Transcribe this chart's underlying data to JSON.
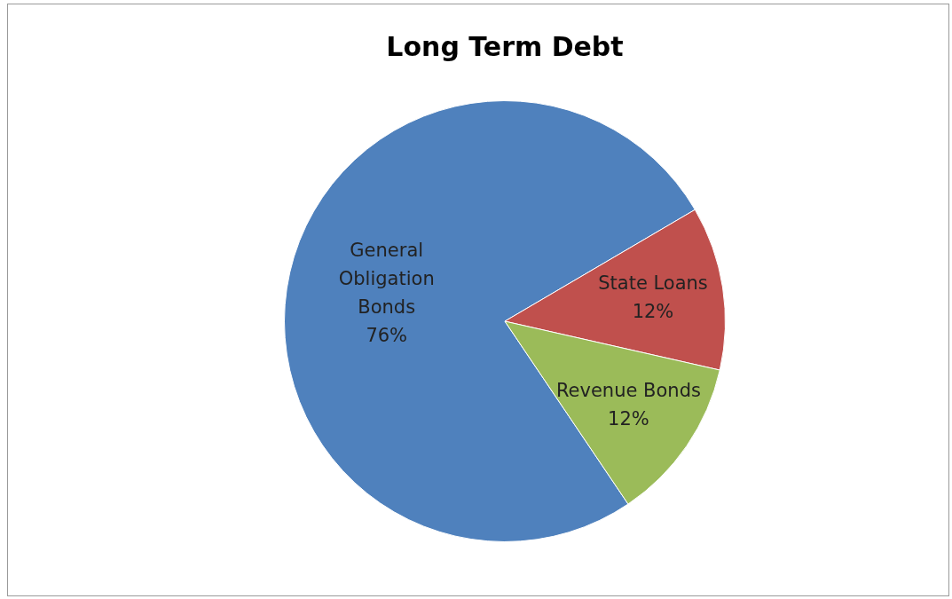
{
  "chart_data": {
    "type": "pie",
    "title": "Long Term Debt",
    "categories": [
      "General Obligation Bonds",
      "State Loans",
      "Revenue Bonds"
    ],
    "values": [
      76,
      12,
      12
    ],
    "value_labels": [
      "76%",
      "12%",
      "12%"
    ],
    "colors": [
      "#4f81bd",
      "#c0504d",
      "#9bbb59"
    ],
    "legend": false
  }
}
